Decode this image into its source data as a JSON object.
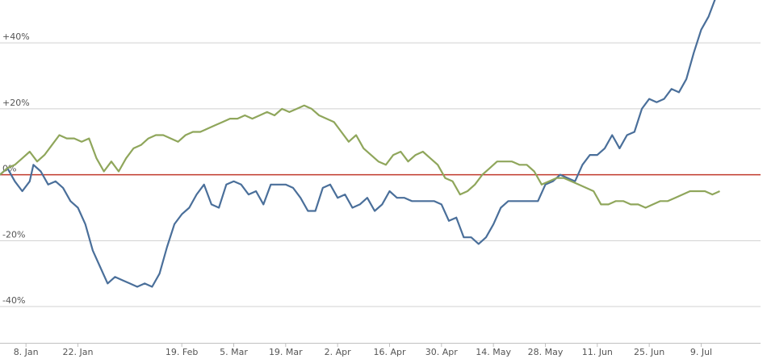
{
  "chart_data": {
    "type": "line",
    "title": "",
    "xlabel": "",
    "ylabel": "",
    "ylim": [
      -51,
      53
    ],
    "xlim": [
      "2018-01-01",
      "2018-07-25"
    ],
    "y_ticks": [
      {
        "value": 40,
        "label": "+40%"
      },
      {
        "value": 20,
        "label": "+20%"
      },
      {
        "value": 0,
        "label": "0%"
      },
      {
        "value": -20,
        "label": "-20%"
      },
      {
        "value": -40,
        "label": "-40%"
      }
    ],
    "x_ticks": [
      {
        "date": "2018-01-08",
        "label": "8. Jan"
      },
      {
        "date": "2018-01-22",
        "label": "22. Jan"
      },
      {
        "date": "2018-02-19",
        "label": "19. Feb"
      },
      {
        "date": "2018-03-05",
        "label": "5. Mar"
      },
      {
        "date": "2018-03-19",
        "label": "19. Mar"
      },
      {
        "date": "2018-04-02",
        "label": "2. Apr"
      },
      {
        "date": "2018-04-16",
        "label": "16. Apr"
      },
      {
        "date": "2018-04-30",
        "label": "30. Apr"
      },
      {
        "date": "2018-05-14",
        "label": "14. May"
      },
      {
        "date": "2018-05-28",
        "label": "28. May"
      },
      {
        "date": "2018-06-11",
        "label": "11. Jun"
      },
      {
        "date": "2018-06-25",
        "label": "25. Jun"
      },
      {
        "date": "2018-07-09",
        "label": "9. Jul"
      }
    ],
    "grid": true,
    "zero_line_color": "#c0392b",
    "series": [
      {
        "color": "#4a6f9a",
        "points": [
          [
            "2018-01-01",
            0
          ],
          [
            "2018-01-03",
            2
          ],
          [
            "2018-01-05",
            -2
          ],
          [
            "2018-01-07",
            -5
          ],
          [
            "2018-01-09",
            -2
          ],
          [
            "2018-01-10",
            3
          ],
          [
            "2018-01-12",
            1
          ],
          [
            "2018-01-14",
            -3
          ],
          [
            "2018-01-16",
            -2
          ],
          [
            "2018-01-18",
            -4
          ],
          [
            "2018-01-20",
            -8
          ],
          [
            "2018-01-22",
            -10
          ],
          [
            "2018-01-24",
            -15
          ],
          [
            "2018-01-26",
            -23
          ],
          [
            "2018-01-28",
            -28
          ],
          [
            "2018-01-30",
            -33
          ],
          [
            "2018-02-01",
            -31
          ],
          [
            "2018-02-03",
            -32
          ],
          [
            "2018-02-05",
            -33
          ],
          [
            "2018-02-07",
            -34
          ],
          [
            "2018-02-09",
            -33
          ],
          [
            "2018-02-11",
            -34
          ],
          [
            "2018-02-13",
            -30
          ],
          [
            "2018-02-15",
            -22
          ],
          [
            "2018-02-17",
            -15
          ],
          [
            "2018-02-19",
            -12
          ],
          [
            "2018-02-21",
            -10
          ],
          [
            "2018-02-23",
            -6
          ],
          [
            "2018-02-25",
            -3
          ],
          [
            "2018-02-27",
            -9
          ],
          [
            "2018-03-01",
            -10
          ],
          [
            "2018-03-03",
            -3
          ],
          [
            "2018-03-05",
            -2
          ],
          [
            "2018-03-07",
            -3
          ],
          [
            "2018-03-09",
            -6
          ],
          [
            "2018-03-11",
            -5
          ],
          [
            "2018-03-13",
            -9
          ],
          [
            "2018-03-15",
            -3
          ],
          [
            "2018-03-17",
            -3
          ],
          [
            "2018-03-19",
            -3
          ],
          [
            "2018-03-21",
            -4
          ],
          [
            "2018-03-23",
            -7
          ],
          [
            "2018-03-25",
            -11
          ],
          [
            "2018-03-27",
            -11
          ],
          [
            "2018-03-29",
            -4
          ],
          [
            "2018-03-31",
            -3
          ],
          [
            "2018-04-02",
            -7
          ],
          [
            "2018-04-04",
            -6
          ],
          [
            "2018-04-06",
            -10
          ],
          [
            "2018-04-08",
            -9
          ],
          [
            "2018-04-10",
            -7
          ],
          [
            "2018-04-12",
            -11
          ],
          [
            "2018-04-14",
            -9
          ],
          [
            "2018-04-16",
            -5
          ],
          [
            "2018-04-18",
            -7
          ],
          [
            "2018-04-20",
            -7
          ],
          [
            "2018-04-22",
            -8
          ],
          [
            "2018-04-24",
            -8
          ],
          [
            "2018-04-26",
            -8
          ],
          [
            "2018-04-28",
            -8
          ],
          [
            "2018-04-30",
            -9
          ],
          [
            "2018-05-02",
            -14
          ],
          [
            "2018-05-04",
            -13
          ],
          [
            "2018-05-06",
            -19
          ],
          [
            "2018-05-08",
            -19
          ],
          [
            "2018-05-10",
            -21
          ],
          [
            "2018-05-12",
            -19
          ],
          [
            "2018-05-14",
            -15
          ],
          [
            "2018-05-16",
            -10
          ],
          [
            "2018-05-18",
            -8
          ],
          [
            "2018-05-20",
            -8
          ],
          [
            "2018-05-22",
            -8
          ],
          [
            "2018-05-24",
            -8
          ],
          [
            "2018-05-26",
            -8
          ],
          [
            "2018-05-28",
            -3
          ],
          [
            "2018-05-30",
            -2
          ],
          [
            "2018-06-01",
            0
          ],
          [
            "2018-06-03",
            -1
          ],
          [
            "2018-06-05",
            -2
          ],
          [
            "2018-06-07",
            3
          ],
          [
            "2018-06-09",
            6
          ],
          [
            "2018-06-11",
            6
          ],
          [
            "2018-06-13",
            8
          ],
          [
            "2018-06-15",
            12
          ],
          [
            "2018-06-17",
            8
          ],
          [
            "2018-06-19",
            12
          ],
          [
            "2018-06-21",
            13
          ],
          [
            "2018-06-23",
            20
          ],
          [
            "2018-06-25",
            23
          ],
          [
            "2018-06-27",
            22
          ],
          [
            "2018-06-29",
            23
          ],
          [
            "2018-07-01",
            26
          ],
          [
            "2018-07-03",
            25
          ],
          [
            "2018-07-05",
            29
          ],
          [
            "2018-07-07",
            37
          ],
          [
            "2018-07-09",
            44
          ],
          [
            "2018-07-11",
            48
          ],
          [
            "2018-07-13",
            54
          ]
        ]
      },
      {
        "color": "#8fa65b",
        "points": [
          [
            "2018-01-01",
            0
          ],
          [
            "2018-01-03",
            2
          ],
          [
            "2018-01-05",
            3
          ],
          [
            "2018-01-07",
            5
          ],
          [
            "2018-01-09",
            7
          ],
          [
            "2018-01-11",
            4
          ],
          [
            "2018-01-13",
            6
          ],
          [
            "2018-01-15",
            9
          ],
          [
            "2018-01-17",
            12
          ],
          [
            "2018-01-19",
            11
          ],
          [
            "2018-01-21",
            11
          ],
          [
            "2018-01-23",
            10
          ],
          [
            "2018-01-25",
            11
          ],
          [
            "2018-01-27",
            5
          ],
          [
            "2018-01-29",
            1
          ],
          [
            "2018-01-31",
            4
          ],
          [
            "2018-02-02",
            1
          ],
          [
            "2018-02-04",
            5
          ],
          [
            "2018-02-06",
            8
          ],
          [
            "2018-02-08",
            9
          ],
          [
            "2018-02-10",
            11
          ],
          [
            "2018-02-12",
            12
          ],
          [
            "2018-02-14",
            12
          ],
          [
            "2018-02-16",
            11
          ],
          [
            "2018-02-18",
            10
          ],
          [
            "2018-02-20",
            12
          ],
          [
            "2018-02-22",
            13
          ],
          [
            "2018-02-24",
            13
          ],
          [
            "2018-02-26",
            14
          ],
          [
            "2018-02-28",
            15
          ],
          [
            "2018-03-02",
            16
          ],
          [
            "2018-03-04",
            17
          ],
          [
            "2018-03-06",
            17
          ],
          [
            "2018-03-08",
            18
          ],
          [
            "2018-03-10",
            17
          ],
          [
            "2018-03-12",
            18
          ],
          [
            "2018-03-14",
            19
          ],
          [
            "2018-03-16",
            18
          ],
          [
            "2018-03-18",
            20
          ],
          [
            "2018-03-20",
            19
          ],
          [
            "2018-03-22",
            20
          ],
          [
            "2018-03-24",
            21
          ],
          [
            "2018-03-26",
            20
          ],
          [
            "2018-03-28",
            18
          ],
          [
            "2018-03-30",
            17
          ],
          [
            "2018-04-01",
            16
          ],
          [
            "2018-04-03",
            13
          ],
          [
            "2018-04-05",
            10
          ],
          [
            "2018-04-07",
            12
          ],
          [
            "2018-04-09",
            8
          ],
          [
            "2018-04-11",
            6
          ],
          [
            "2018-04-13",
            4
          ],
          [
            "2018-04-15",
            3
          ],
          [
            "2018-04-17",
            6
          ],
          [
            "2018-04-19",
            7
          ],
          [
            "2018-04-21",
            4
          ],
          [
            "2018-04-23",
            6
          ],
          [
            "2018-04-25",
            7
          ],
          [
            "2018-04-27",
            5
          ],
          [
            "2018-04-29",
            3
          ],
          [
            "2018-05-01",
            -1
          ],
          [
            "2018-05-03",
            -2
          ],
          [
            "2018-05-05",
            -6
          ],
          [
            "2018-05-07",
            -5
          ],
          [
            "2018-05-09",
            -3
          ],
          [
            "2018-05-11",
            0
          ],
          [
            "2018-05-13",
            2
          ],
          [
            "2018-05-15",
            4
          ],
          [
            "2018-05-17",
            4
          ],
          [
            "2018-05-19",
            4
          ],
          [
            "2018-05-21",
            3
          ],
          [
            "2018-05-23",
            3
          ],
          [
            "2018-05-25",
            1
          ],
          [
            "2018-05-27",
            -3
          ],
          [
            "2018-05-29",
            -2
          ],
          [
            "2018-05-31",
            -1
          ],
          [
            "2018-06-02",
            -1
          ],
          [
            "2018-06-04",
            -2
          ],
          [
            "2018-06-06",
            -3
          ],
          [
            "2018-06-08",
            -4
          ],
          [
            "2018-06-10",
            -5
          ],
          [
            "2018-06-12",
            -9
          ],
          [
            "2018-06-14",
            -9
          ],
          [
            "2018-06-16",
            -8
          ],
          [
            "2018-06-18",
            -8
          ],
          [
            "2018-06-20",
            -9
          ],
          [
            "2018-06-22",
            -9
          ],
          [
            "2018-06-24",
            -10
          ],
          [
            "2018-06-26",
            -9
          ],
          [
            "2018-06-28",
            -8
          ],
          [
            "2018-06-30",
            -8
          ],
          [
            "2018-07-02",
            -7
          ],
          [
            "2018-07-04",
            -6
          ],
          [
            "2018-07-06",
            -5
          ],
          [
            "2018-07-08",
            -5
          ],
          [
            "2018-07-10",
            -5
          ],
          [
            "2018-07-12",
            -6
          ],
          [
            "2018-07-14",
            -5
          ]
        ]
      }
    ]
  }
}
